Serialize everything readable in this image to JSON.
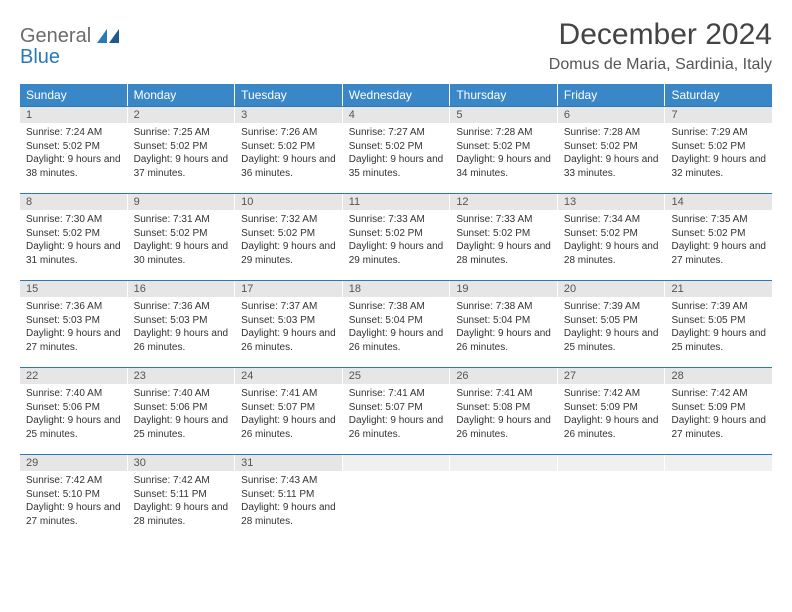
{
  "logo": {
    "line1": "General",
    "line2": "Blue"
  },
  "title": "December 2024",
  "location": "Domus de Maria, Sardinia, Italy",
  "colors": {
    "header_bg": "#3a87c7",
    "header_text": "#ffffff",
    "daynum_bg": "#e6e6e6",
    "week_border": "#2a7ab9",
    "body_text": "#333333"
  },
  "weekdays": [
    "Sunday",
    "Monday",
    "Tuesday",
    "Wednesday",
    "Thursday",
    "Friday",
    "Saturday"
  ],
  "weeks": [
    [
      {
        "n": "1",
        "sr": "7:24 AM",
        "ss": "5:02 PM",
        "dl": "9 hours and 38 minutes."
      },
      {
        "n": "2",
        "sr": "7:25 AM",
        "ss": "5:02 PM",
        "dl": "9 hours and 37 minutes."
      },
      {
        "n": "3",
        "sr": "7:26 AM",
        "ss": "5:02 PM",
        "dl": "9 hours and 36 minutes."
      },
      {
        "n": "4",
        "sr": "7:27 AM",
        "ss": "5:02 PM",
        "dl": "9 hours and 35 minutes."
      },
      {
        "n": "5",
        "sr": "7:28 AM",
        "ss": "5:02 PM",
        "dl": "9 hours and 34 minutes."
      },
      {
        "n": "6",
        "sr": "7:28 AM",
        "ss": "5:02 PM",
        "dl": "9 hours and 33 minutes."
      },
      {
        "n": "7",
        "sr": "7:29 AM",
        "ss": "5:02 PM",
        "dl": "9 hours and 32 minutes."
      }
    ],
    [
      {
        "n": "8",
        "sr": "7:30 AM",
        "ss": "5:02 PM",
        "dl": "9 hours and 31 minutes."
      },
      {
        "n": "9",
        "sr": "7:31 AM",
        "ss": "5:02 PM",
        "dl": "9 hours and 30 minutes."
      },
      {
        "n": "10",
        "sr": "7:32 AM",
        "ss": "5:02 PM",
        "dl": "9 hours and 29 minutes."
      },
      {
        "n": "11",
        "sr": "7:33 AM",
        "ss": "5:02 PM",
        "dl": "9 hours and 29 minutes."
      },
      {
        "n": "12",
        "sr": "7:33 AM",
        "ss": "5:02 PM",
        "dl": "9 hours and 28 minutes."
      },
      {
        "n": "13",
        "sr": "7:34 AM",
        "ss": "5:02 PM",
        "dl": "9 hours and 28 minutes."
      },
      {
        "n": "14",
        "sr": "7:35 AM",
        "ss": "5:02 PM",
        "dl": "9 hours and 27 minutes."
      }
    ],
    [
      {
        "n": "15",
        "sr": "7:36 AM",
        "ss": "5:03 PM",
        "dl": "9 hours and 27 minutes."
      },
      {
        "n": "16",
        "sr": "7:36 AM",
        "ss": "5:03 PM",
        "dl": "9 hours and 26 minutes."
      },
      {
        "n": "17",
        "sr": "7:37 AM",
        "ss": "5:03 PM",
        "dl": "9 hours and 26 minutes."
      },
      {
        "n": "18",
        "sr": "7:38 AM",
        "ss": "5:04 PM",
        "dl": "9 hours and 26 minutes."
      },
      {
        "n": "19",
        "sr": "7:38 AM",
        "ss": "5:04 PM",
        "dl": "9 hours and 26 minutes."
      },
      {
        "n": "20",
        "sr": "7:39 AM",
        "ss": "5:05 PM",
        "dl": "9 hours and 25 minutes."
      },
      {
        "n": "21",
        "sr": "7:39 AM",
        "ss": "5:05 PM",
        "dl": "9 hours and 25 minutes."
      }
    ],
    [
      {
        "n": "22",
        "sr": "7:40 AM",
        "ss": "5:06 PM",
        "dl": "9 hours and 25 minutes."
      },
      {
        "n": "23",
        "sr": "7:40 AM",
        "ss": "5:06 PM",
        "dl": "9 hours and 25 minutes."
      },
      {
        "n": "24",
        "sr": "7:41 AM",
        "ss": "5:07 PM",
        "dl": "9 hours and 26 minutes."
      },
      {
        "n": "25",
        "sr": "7:41 AM",
        "ss": "5:07 PM",
        "dl": "9 hours and 26 minutes."
      },
      {
        "n": "26",
        "sr": "7:41 AM",
        "ss": "5:08 PM",
        "dl": "9 hours and 26 minutes."
      },
      {
        "n": "27",
        "sr": "7:42 AM",
        "ss": "5:09 PM",
        "dl": "9 hours and 26 minutes."
      },
      {
        "n": "28",
        "sr": "7:42 AM",
        "ss": "5:09 PM",
        "dl": "9 hours and 27 minutes."
      }
    ],
    [
      {
        "n": "29",
        "sr": "7:42 AM",
        "ss": "5:10 PM",
        "dl": "9 hours and 27 minutes."
      },
      {
        "n": "30",
        "sr": "7:42 AM",
        "ss": "5:11 PM",
        "dl": "9 hours and 28 minutes."
      },
      {
        "n": "31",
        "sr": "7:43 AM",
        "ss": "5:11 PM",
        "dl": "9 hours and 28 minutes."
      },
      null,
      null,
      null,
      null
    ]
  ],
  "labels": {
    "sunrise": "Sunrise:",
    "sunset": "Sunset:",
    "daylight": "Daylight:"
  }
}
